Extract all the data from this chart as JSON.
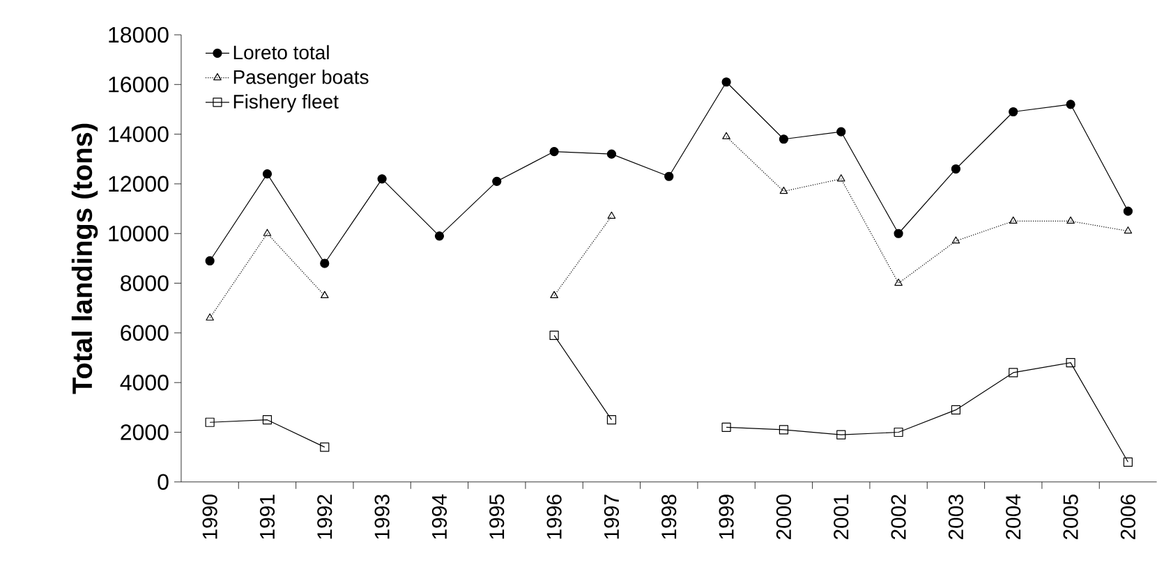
{
  "chart_data": {
    "type": "line",
    "ylabel": "Total landings (tons)",
    "categories": [
      "1990",
      "1991",
      "1992",
      "1993",
      "1994",
      "1995",
      "1996",
      "1997",
      "1998",
      "1999",
      "2000",
      "2001",
      "2002",
      "2003",
      "2004",
      "2005",
      "2006"
    ],
    "series": [
      {
        "name": "Loreto total",
        "color": "#000000",
        "marker": "circle",
        "line_style": "solid",
        "values": [
          8900,
          12400,
          8800,
          12200,
          9900,
          12100,
          13300,
          13200,
          12300,
          16100,
          13800,
          14100,
          10000,
          12600,
          14900,
          15200,
          10900
        ]
      },
      {
        "name": "Pasenger boats",
        "color": "#000000",
        "marker": "triangle",
        "line_style": "dotted",
        "values": [
          6600,
          10000,
          7500,
          null,
          null,
          null,
          7500,
          10700,
          null,
          13900,
          11700,
          12200,
          8000,
          9700,
          10500,
          10500,
          10100
        ]
      },
      {
        "name": "Fishery fleet",
        "color": "#000000",
        "marker": "square",
        "line_style": "solid",
        "values": [
          2400,
          2500,
          1400,
          null,
          null,
          null,
          5900,
          2500,
          null,
          2200,
          2100,
          1900,
          2000,
          2900,
          4400,
          4800,
          800
        ]
      }
    ],
    "ylim": [
      0,
      18000
    ],
    "yticks": [
      0,
      2000,
      4000,
      6000,
      8000,
      10000,
      12000,
      14000,
      16000,
      18000
    ],
    "legend": "top left"
  }
}
